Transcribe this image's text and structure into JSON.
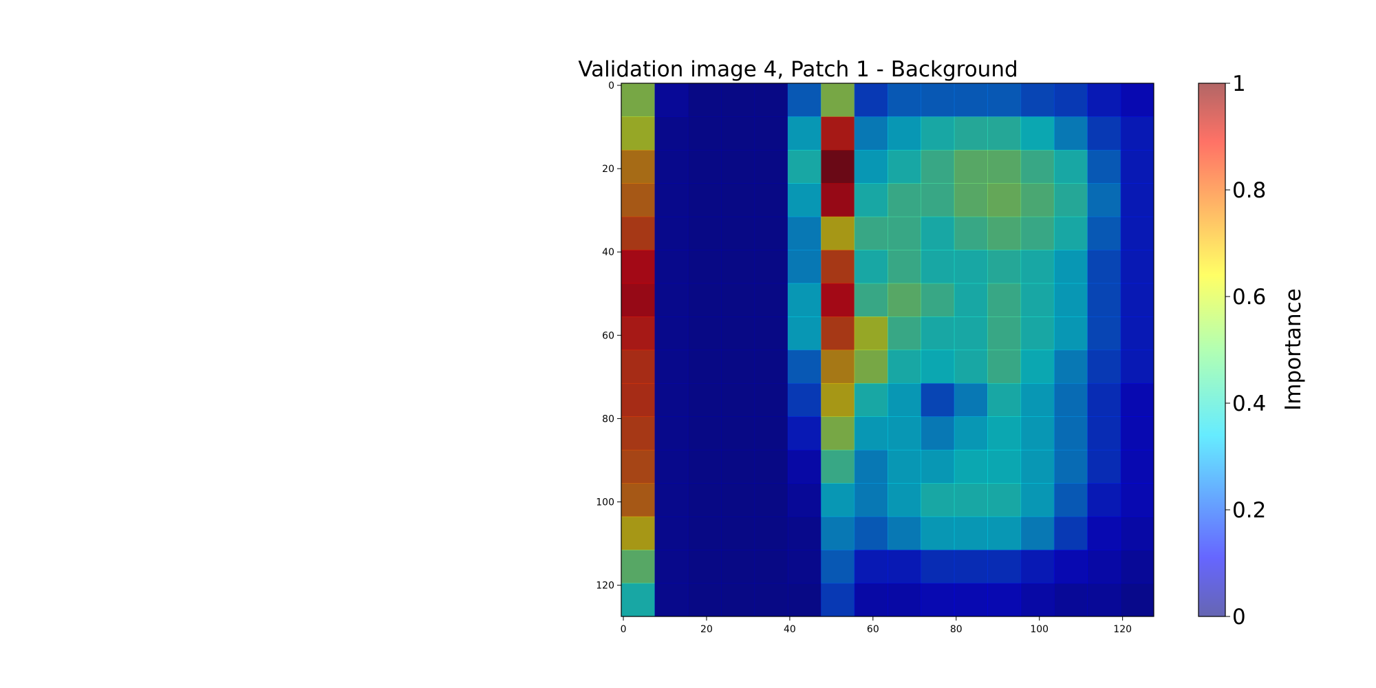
{
  "chart_data": {
    "type": "heatmap",
    "title": "Validation image 4, Patch 1 - Background",
    "xlabel": "",
    "ylabel": "",
    "xlim": [
      -0.5,
      127.5
    ],
    "ylim": [
      127.5,
      -0.5
    ],
    "x_ticks": [
      0,
      20,
      40,
      60,
      80,
      100,
      120
    ],
    "y_ticks": [
      0,
      20,
      40,
      60,
      80,
      100,
      120
    ],
    "grid": false,
    "colormap": "jet",
    "colorbar": {
      "label": "Importance",
      "range": [
        0,
        1
      ],
      "ticks": [
        "0",
        "0.2",
        "0.4",
        "0.6",
        "0.8",
        "1"
      ],
      "tick_values": [
        0,
        0.2,
        0.4,
        0.6,
        0.8,
        1
      ]
    },
    "grid_resolution": [
      16,
      16
    ],
    "importance": [
      [
        0.55,
        0.08,
        0.05,
        0.05,
        0.05,
        0.25,
        0.55,
        0.2,
        0.25,
        0.25,
        0.25,
        0.25,
        0.22,
        0.2,
        0.15,
        0.12
      ],
      [
        0.6,
        0.06,
        0.05,
        0.05,
        0.05,
        0.35,
        0.85,
        0.3,
        0.35,
        0.4,
        0.42,
        0.42,
        0.38,
        0.3,
        0.2,
        0.15
      ],
      [
        0.72,
        0.06,
        0.05,
        0.05,
        0.05,
        0.4,
        0.97,
        0.35,
        0.4,
        0.45,
        0.5,
        0.5,
        0.45,
        0.4,
        0.25,
        0.15
      ],
      [
        0.75,
        0.06,
        0.05,
        0.05,
        0.05,
        0.35,
        0.9,
        0.4,
        0.45,
        0.45,
        0.5,
        0.52,
        0.48,
        0.42,
        0.28,
        0.15
      ],
      [
        0.8,
        0.06,
        0.05,
        0.05,
        0.05,
        0.3,
        0.65,
        0.45,
        0.45,
        0.4,
        0.45,
        0.48,
        0.45,
        0.4,
        0.25,
        0.15
      ],
      [
        0.88,
        0.06,
        0.05,
        0.05,
        0.05,
        0.3,
        0.8,
        0.4,
        0.45,
        0.4,
        0.4,
        0.42,
        0.4,
        0.35,
        0.22,
        0.15
      ],
      [
        0.9,
        0.06,
        0.05,
        0.05,
        0.05,
        0.35,
        0.88,
        0.45,
        0.5,
        0.45,
        0.4,
        0.45,
        0.4,
        0.35,
        0.22,
        0.15
      ],
      [
        0.85,
        0.06,
        0.05,
        0.05,
        0.05,
        0.35,
        0.8,
        0.6,
        0.45,
        0.4,
        0.4,
        0.45,
        0.4,
        0.35,
        0.22,
        0.15
      ],
      [
        0.82,
        0.06,
        0.05,
        0.05,
        0.05,
        0.25,
        0.7,
        0.55,
        0.4,
        0.38,
        0.4,
        0.45,
        0.38,
        0.3,
        0.2,
        0.15
      ],
      [
        0.82,
        0.06,
        0.05,
        0.05,
        0.05,
        0.2,
        0.65,
        0.4,
        0.35,
        0.22,
        0.3,
        0.4,
        0.35,
        0.28,
        0.18,
        0.12
      ],
      [
        0.8,
        0.06,
        0.05,
        0.05,
        0.05,
        0.15,
        0.55,
        0.35,
        0.35,
        0.3,
        0.35,
        0.38,
        0.35,
        0.28,
        0.18,
        0.12
      ],
      [
        0.78,
        0.06,
        0.05,
        0.05,
        0.05,
        0.1,
        0.45,
        0.3,
        0.35,
        0.35,
        0.38,
        0.38,
        0.35,
        0.28,
        0.18,
        0.12
      ],
      [
        0.75,
        0.06,
        0.05,
        0.05,
        0.05,
        0.08,
        0.35,
        0.3,
        0.35,
        0.4,
        0.4,
        0.4,
        0.35,
        0.25,
        0.15,
        0.12
      ],
      [
        0.65,
        0.06,
        0.05,
        0.05,
        0.05,
        0.06,
        0.3,
        0.25,
        0.3,
        0.35,
        0.35,
        0.35,
        0.3,
        0.2,
        0.12,
        0.1
      ],
      [
        0.5,
        0.06,
        0.05,
        0.05,
        0.05,
        0.06,
        0.25,
        0.15,
        0.15,
        0.18,
        0.18,
        0.18,
        0.15,
        0.12,
        0.1,
        0.08
      ],
      [
        0.4,
        0.06,
        0.05,
        0.05,
        0.05,
        0.05,
        0.2,
        0.1,
        0.1,
        0.12,
        0.12,
        0.12,
        0.1,
        0.08,
        0.08,
        0.06
      ]
    ]
  }
}
